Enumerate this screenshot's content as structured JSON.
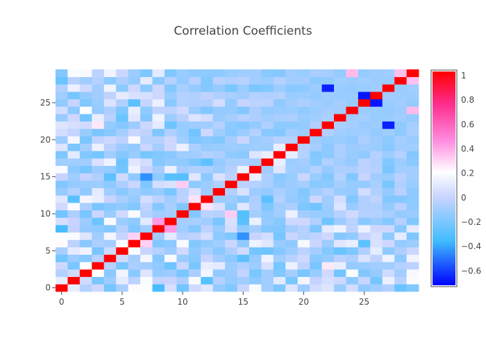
{
  "chart_data": {
    "type": "heatmap",
    "title": "Correlation Coefficients",
    "xlabel": "",
    "ylabel": "",
    "x_range": [
      0,
      29
    ],
    "y_range": [
      0,
      29
    ],
    "x_ticks": [
      0,
      5,
      10,
      15,
      20,
      25
    ],
    "y_ticks": [
      0,
      5,
      10,
      15,
      20,
      25
    ],
    "colorbar": {
      "range": [
        -0.7,
        1
      ],
      "ticks": [
        1,
        0.8,
        0.6,
        0.4,
        0.2,
        0,
        -0.2,
        -0.4,
        -0.6
      ],
      "tick_labels": [
        "1",
        "0.8",
        "0.6",
        "0.4",
        "0.2",
        "0",
        "−0.2",
        "−0.4",
        "−0.6"
      ],
      "colorscale": [
        [
          -0.7,
          "#0000ff"
        ],
        [
          -0.35,
          "#3fbcff"
        ],
        [
          0.0,
          "#c8d4ff"
        ],
        [
          0.2,
          "#ffffff"
        ],
        [
          0.45,
          "#ff8ce0"
        ],
        [
          0.75,
          "#ff2a8a"
        ],
        [
          1.0,
          "#ff0000"
        ]
      ]
    },
    "n": 30,
    "diagonal_value": 1,
    "z": [
      [
        1.0,
        0.12,
        -0.05,
        0.02,
        -0.21,
        -0.08,
        0.21,
        0.19,
        -0.33,
        0.05,
        -0.22,
        0.03,
        0.09,
        -0.13,
        -0.18,
        0.0,
        0.18,
        -0.1,
        -0.19,
        0.08,
        -0.11,
        0.04,
        0.08,
        -0.12,
        0.04,
        -0.14,
        -0.1,
        -0.06,
        -0.24,
        -0.18
      ],
      [
        0.12,
        1.0,
        0.03,
        -0.2,
        -0.11,
        0.1,
        -0.03,
        0.18,
        -0.01,
        0.0,
        -0.07,
        0.18,
        -0.28,
        -0.05,
        -0.13,
        -0.1,
        -0.15,
        -0.1,
        0.1,
        -0.2,
        0.16,
        -0.01,
        0.05,
        0.02,
        -0.15,
        0.0,
        -0.21,
        0.13,
        -0.04,
        0.18
      ],
      [
        -0.05,
        0.03,
        1.0,
        0.2,
        -0.16,
        0.15,
        -0.16,
        0.08,
        -0.13,
        -0.11,
        -0.2,
        -0.07,
        0.16,
        -0.14,
        -0.12,
        -0.01,
        -0.2,
        -0.1,
        -0.18,
        -0.09,
        -0.2,
        -0.12,
        0.03,
        -0.22,
        0.19,
        -0.18,
        -0.13,
        0.03,
        -0.1,
        0.17
      ],
      [
        0.02,
        -0.2,
        0.2,
        1.0,
        -0.04,
        -0.2,
        -0.07,
        -0.1,
        -0.14,
        -0.23,
        0.01,
        -0.2,
        0.12,
        0.1,
        -0.11,
        -0.06,
        -0.11,
        0.06,
        -0.21,
        0.13,
        -0.02,
        -0.2,
        0.25,
        0.12,
        -0.13,
        -0.12,
        -0.1,
        -0.1,
        -0.05,
        -0.03
      ],
      [
        -0.21,
        -0.11,
        -0.16,
        -0.04,
        1.0,
        0.03,
        -0.09,
        0.16,
        -0.17,
        0.18,
        -0.12,
        -0.16,
        0.0,
        -0.1,
        -0.15,
        -0.27,
        -0.13,
        0.14,
        -0.1,
        -0.04,
        0.02,
        -0.16,
        -0.13,
        -0.04,
        -0.07,
        0.07,
        -0.02,
        0.14,
        -0.15,
        0.15
      ],
      [
        -0.08,
        0.1,
        0.15,
        -0.2,
        0.03,
        1.0,
        0.18,
        0.0,
        -0.05,
        -0.11,
        0.03,
        -0.14,
        -0.08,
        -0.16,
        -0.07,
        0.03,
        -0.22,
        -0.23,
        -0.17,
        -0.11,
        -0.03,
        -0.09,
        -0.17,
        -0.24,
        -0.19,
        -0.06,
        0.11,
        -0.15,
        -0.07,
        0.01
      ],
      [
        0.21,
        -0.03,
        -0.16,
        -0.07,
        -0.09,
        0.18,
        1.0,
        0.3,
        -0.18,
        -0.15,
        0.18,
        -0.18,
        -0.13,
        -0.1,
        0.01,
        -0.14,
        0.14,
        0.09,
        -0.12,
        -0.14,
        0.17,
        0.01,
        -0.11,
        0.09,
        0.12,
        -0.27,
        0.06,
        0.02,
        -0.13,
        -0.11
      ],
      [
        0.19,
        0.18,
        0.08,
        -0.1,
        0.16,
        0.0,
        0.3,
        1.0,
        -0.1,
        0.1,
        -0.05,
        -0.02,
        0.04,
        -0.15,
        -0.19,
        -0.43,
        0.0,
        0.04,
        -0.21,
        0.01,
        -0.05,
        -0.02,
        0.02,
        -0.17,
        -0.14,
        0.0,
        0.05,
        -0.15,
        0.11,
        -0.19
      ],
      [
        -0.33,
        -0.01,
        -0.13,
        -0.14,
        -0.17,
        -0.05,
        -0.18,
        -0.1,
        1.0,
        0.42,
        -0.1,
        -0.17,
        -0.03,
        -0.12,
        0.04,
        -0.14,
        -0.09,
        -0.17,
        -0.18,
        -0.09,
        -0.04,
        -0.19,
        0.1,
        0.14,
        -0.02,
        0.13,
        0.02,
        0.02,
        -0.16,
        0.1
      ],
      [
        0.05,
        0.0,
        -0.11,
        -0.23,
        0.18,
        -0.11,
        -0.15,
        0.1,
        0.42,
        1.0,
        -0.09,
        -0.08,
        -0.1,
        -0.2,
        0.06,
        -0.28,
        0.13,
        -0.13,
        -0.16,
        0.02,
        0.02,
        -0.06,
        -0.23,
        -0.11,
        -0.03,
        -0.16,
        -0.12,
        -0.17,
        -0.05,
        -0.18
      ],
      [
        -0.22,
        -0.07,
        -0.2,
        0.01,
        -0.12,
        0.03,
        0.18,
        -0.05,
        -0.1,
        -0.09,
        1.0,
        -0.18,
        -0.03,
        -0.04,
        0.31,
        -0.29,
        -0.09,
        -0.14,
        -0.1,
        0.13,
        -0.1,
        -0.12,
        -0.12,
        -0.04,
        0.03,
        -0.05,
        -0.05,
        -0.08,
        -0.13,
        -0.12
      ],
      [
        0.03,
        0.18,
        -0.07,
        -0.2,
        -0.16,
        -0.14,
        -0.18,
        -0.02,
        -0.17,
        -0.08,
        -0.18,
        1.0,
        0.26,
        0.06,
        -0.15,
        0.09,
        -0.06,
        -0.19,
        -0.1,
        -0.07,
        -0.19,
        -0.22,
        -0.11,
        0.08,
        -0.12,
        -0.06,
        -0.06,
        -0.13,
        -0.04,
        -0.14
      ],
      [
        0.09,
        -0.28,
        0.16,
        0.12,
        0.0,
        -0.08,
        -0.13,
        0.04,
        -0.03,
        -0.1,
        -0.03,
        0.26,
        1.0,
        -0.11,
        -0.11,
        -0.16,
        -0.07,
        -0.27,
        -0.05,
        -0.13,
        -0.16,
        0.02,
        -0.1,
        0.04,
        -0.18,
        -0.06,
        -0.02,
        -0.17,
        -0.17,
        -0.15
      ],
      [
        -0.13,
        -0.05,
        -0.14,
        0.1,
        -0.1,
        -0.16,
        -0.1,
        -0.15,
        -0.12,
        -0.2,
        -0.04,
        0.06,
        -0.11,
        1.0,
        -0.06,
        0.06,
        -0.11,
        -0.13,
        -0.07,
        -0.12,
        -0.18,
        -0.1,
        -0.05,
        -0.12,
        -0.13,
        0.04,
        -0.06,
        -0.13,
        -0.04,
        -0.15
      ],
      [
        -0.18,
        -0.13,
        -0.12,
        -0.11,
        -0.15,
        -0.07,
        0.01,
        -0.19,
        0.04,
        0.06,
        0.31,
        -0.15,
        -0.11,
        -0.06,
        1.0,
        -0.03,
        -0.05,
        -0.08,
        -0.14,
        -0.11,
        -0.09,
        -0.16,
        -0.15,
        -0.09,
        -0.13,
        -0.13,
        -0.08,
        -0.2,
        -0.06,
        -0.12
      ],
      [
        0.0,
        -0.1,
        -0.01,
        -0.06,
        -0.27,
        0.03,
        -0.14,
        -0.43,
        -0.14,
        -0.28,
        -0.29,
        0.09,
        -0.16,
        0.06,
        -0.03,
        1.0,
        0.13,
        -0.07,
        -0.16,
        -0.12,
        0.01,
        -0.12,
        -0.17,
        -0.05,
        -0.18,
        0.0,
        -0.1,
        -0.12,
        -0.04,
        -0.1
      ],
      [
        0.18,
        -0.15,
        -0.2,
        -0.11,
        -0.13,
        -0.22,
        0.14,
        0.0,
        -0.09,
        0.13,
        -0.09,
        -0.06,
        -0.07,
        -0.11,
        -0.05,
        0.13,
        1.0,
        -0.1,
        0.08,
        -0.1,
        -0.11,
        -0.05,
        -0.13,
        -0.07,
        -0.07,
        -0.03,
        -0.05,
        -0.2,
        -0.1,
        -0.1
      ],
      [
        -0.1,
        -0.1,
        -0.1,
        0.06,
        0.14,
        -0.23,
        0.09,
        0.04,
        -0.17,
        -0.13,
        -0.14,
        -0.19,
        -0.27,
        -0.13,
        -0.08,
        -0.07,
        -0.1,
        1.0,
        0.12,
        -0.11,
        -0.09,
        -0.16,
        -0.06,
        -0.1,
        -0.13,
        -0.03,
        -0.06,
        -0.18,
        -0.11,
        -0.16
      ],
      [
        -0.19,
        0.1,
        -0.18,
        -0.21,
        -0.1,
        -0.17,
        -0.12,
        -0.21,
        -0.18,
        -0.16,
        -0.1,
        -0.1,
        -0.05,
        -0.07,
        -0.14,
        -0.16,
        0.08,
        0.12,
        1.0,
        0.12,
        -0.05,
        -0.17,
        -0.15,
        -0.08,
        -0.12,
        -0.14,
        -0.05,
        -0.11,
        -0.05,
        -0.17
      ],
      [
        0.08,
        -0.2,
        -0.09,
        0.13,
        -0.04,
        -0.11,
        -0.14,
        0.01,
        -0.09,
        0.02,
        0.13,
        -0.07,
        -0.13,
        -0.12,
        -0.11,
        -0.12,
        -0.1,
        -0.11,
        0.12,
        1.0,
        -0.05,
        -0.09,
        -0.15,
        -0.07,
        -0.11,
        -0.1,
        -0.12,
        -0.16,
        -0.1,
        -0.1
      ],
      [
        -0.11,
        0.16,
        -0.2,
        -0.02,
        0.02,
        -0.03,
        0.17,
        -0.05,
        -0.04,
        0.02,
        -0.1,
        -0.19,
        -0.16,
        -0.18,
        -0.09,
        0.01,
        -0.11,
        -0.09,
        -0.05,
        -0.05,
        1.0,
        -0.11,
        -0.13,
        -0.12,
        -0.14,
        -0.07,
        -0.11,
        -0.15,
        -0.09,
        -0.12
      ],
      [
        0.04,
        -0.01,
        -0.12,
        -0.2,
        -0.16,
        -0.09,
        0.01,
        -0.02,
        -0.19,
        -0.06,
        -0.12,
        -0.22,
        0.02,
        -0.1,
        -0.16,
        -0.12,
        -0.05,
        -0.16,
        -0.17,
        -0.09,
        -0.11,
        1.0,
        -0.06,
        -0.1,
        -0.11,
        -0.1,
        -0.13,
        -0.11,
        -0.15,
        -0.08
      ],
      [
        0.08,
        0.05,
        0.03,
        0.25,
        -0.13,
        -0.17,
        -0.11,
        0.02,
        0.1,
        -0.23,
        -0.12,
        -0.11,
        -0.1,
        -0.05,
        -0.15,
        -0.17,
        -0.13,
        -0.06,
        -0.15,
        -0.15,
        -0.13,
        -0.06,
        1.0,
        -0.07,
        -0.09,
        -0.12,
        -0.11,
        -0.64,
        -0.14,
        -0.09
      ],
      [
        -0.12,
        0.02,
        -0.22,
        0.12,
        -0.04,
        -0.24,
        0.09,
        -0.17,
        0.14,
        -0.11,
        -0.04,
        0.08,
        0.04,
        -0.12,
        -0.09,
        -0.05,
        -0.07,
        -0.1,
        -0.08,
        -0.07,
        -0.12,
        -0.1,
        -0.07,
        1.0,
        -0.1,
        -0.09,
        -0.12,
        -0.12,
        -0.1,
        -0.13
      ],
      [
        0.04,
        -0.15,
        0.19,
        -0.13,
        -0.07,
        -0.19,
        0.12,
        -0.14,
        -0.02,
        -0.03,
        0.03,
        -0.12,
        -0.18,
        -0.13,
        -0.13,
        -0.18,
        -0.07,
        -0.13,
        -0.12,
        -0.11,
        -0.14,
        -0.11,
        -0.09,
        -0.1,
        1.0,
        -0.12,
        -0.12,
        -0.13,
        -0.11,
        0.35
      ],
      [
        -0.14,
        0.0,
        -0.18,
        -0.12,
        0.07,
        -0.06,
        -0.27,
        0.0,
        0.13,
        -0.16,
        -0.05,
        -0.06,
        -0.06,
        0.04,
        -0.13,
        0.0,
        -0.03,
        -0.03,
        -0.14,
        -0.1,
        -0.07,
        -0.1,
        -0.12,
        -0.09,
        -0.12,
        1.0,
        -0.66,
        -0.12,
        -0.1,
        -0.13
      ],
      [
        -0.1,
        -0.21,
        -0.13,
        -0.1,
        -0.02,
        0.11,
        0.06,
        0.05,
        0.02,
        -0.12,
        -0.05,
        -0.06,
        -0.02,
        -0.06,
        -0.08,
        -0.1,
        -0.05,
        -0.06,
        -0.05,
        -0.12,
        -0.11,
        -0.13,
        -0.11,
        -0.12,
        -0.12,
        -0.66,
        1.0,
        -0.1,
        -0.11,
        -0.11
      ],
      [
        -0.06,
        0.13,
        0.03,
        -0.1,
        0.14,
        -0.15,
        0.02,
        -0.15,
        0.02,
        -0.17,
        -0.08,
        -0.13,
        -0.17,
        -0.13,
        -0.2,
        -0.12,
        -0.2,
        -0.18,
        -0.11,
        -0.16,
        -0.15,
        -0.11,
        -0.64,
        -0.12,
        -0.13,
        -0.12,
        -0.1,
        1.0,
        -0.12,
        -0.1
      ],
      [
        -0.24,
        -0.04,
        -0.1,
        -0.05,
        -0.15,
        -0.07,
        -0.13,
        0.11,
        -0.16,
        -0.05,
        -0.13,
        -0.04,
        -0.17,
        -0.04,
        -0.06,
        -0.04,
        -0.1,
        -0.11,
        -0.05,
        -0.1,
        -0.09,
        -0.15,
        -0.14,
        -0.1,
        -0.11,
        -0.1,
        -0.11,
        -0.12,
        1.0,
        0.34
      ],
      [
        -0.18,
        0.18,
        0.17,
        -0.03,
        0.15,
        0.01,
        -0.11,
        -0.19,
        0.1,
        -0.18,
        -0.12,
        -0.14,
        -0.15,
        -0.15,
        -0.12,
        -0.1,
        -0.1,
        -0.16,
        -0.17,
        -0.1,
        -0.12,
        -0.08,
        -0.09,
        -0.13,
        0.35,
        -0.13,
        -0.11,
        -0.1,
        0.34,
        1.0
      ]
    ]
  }
}
